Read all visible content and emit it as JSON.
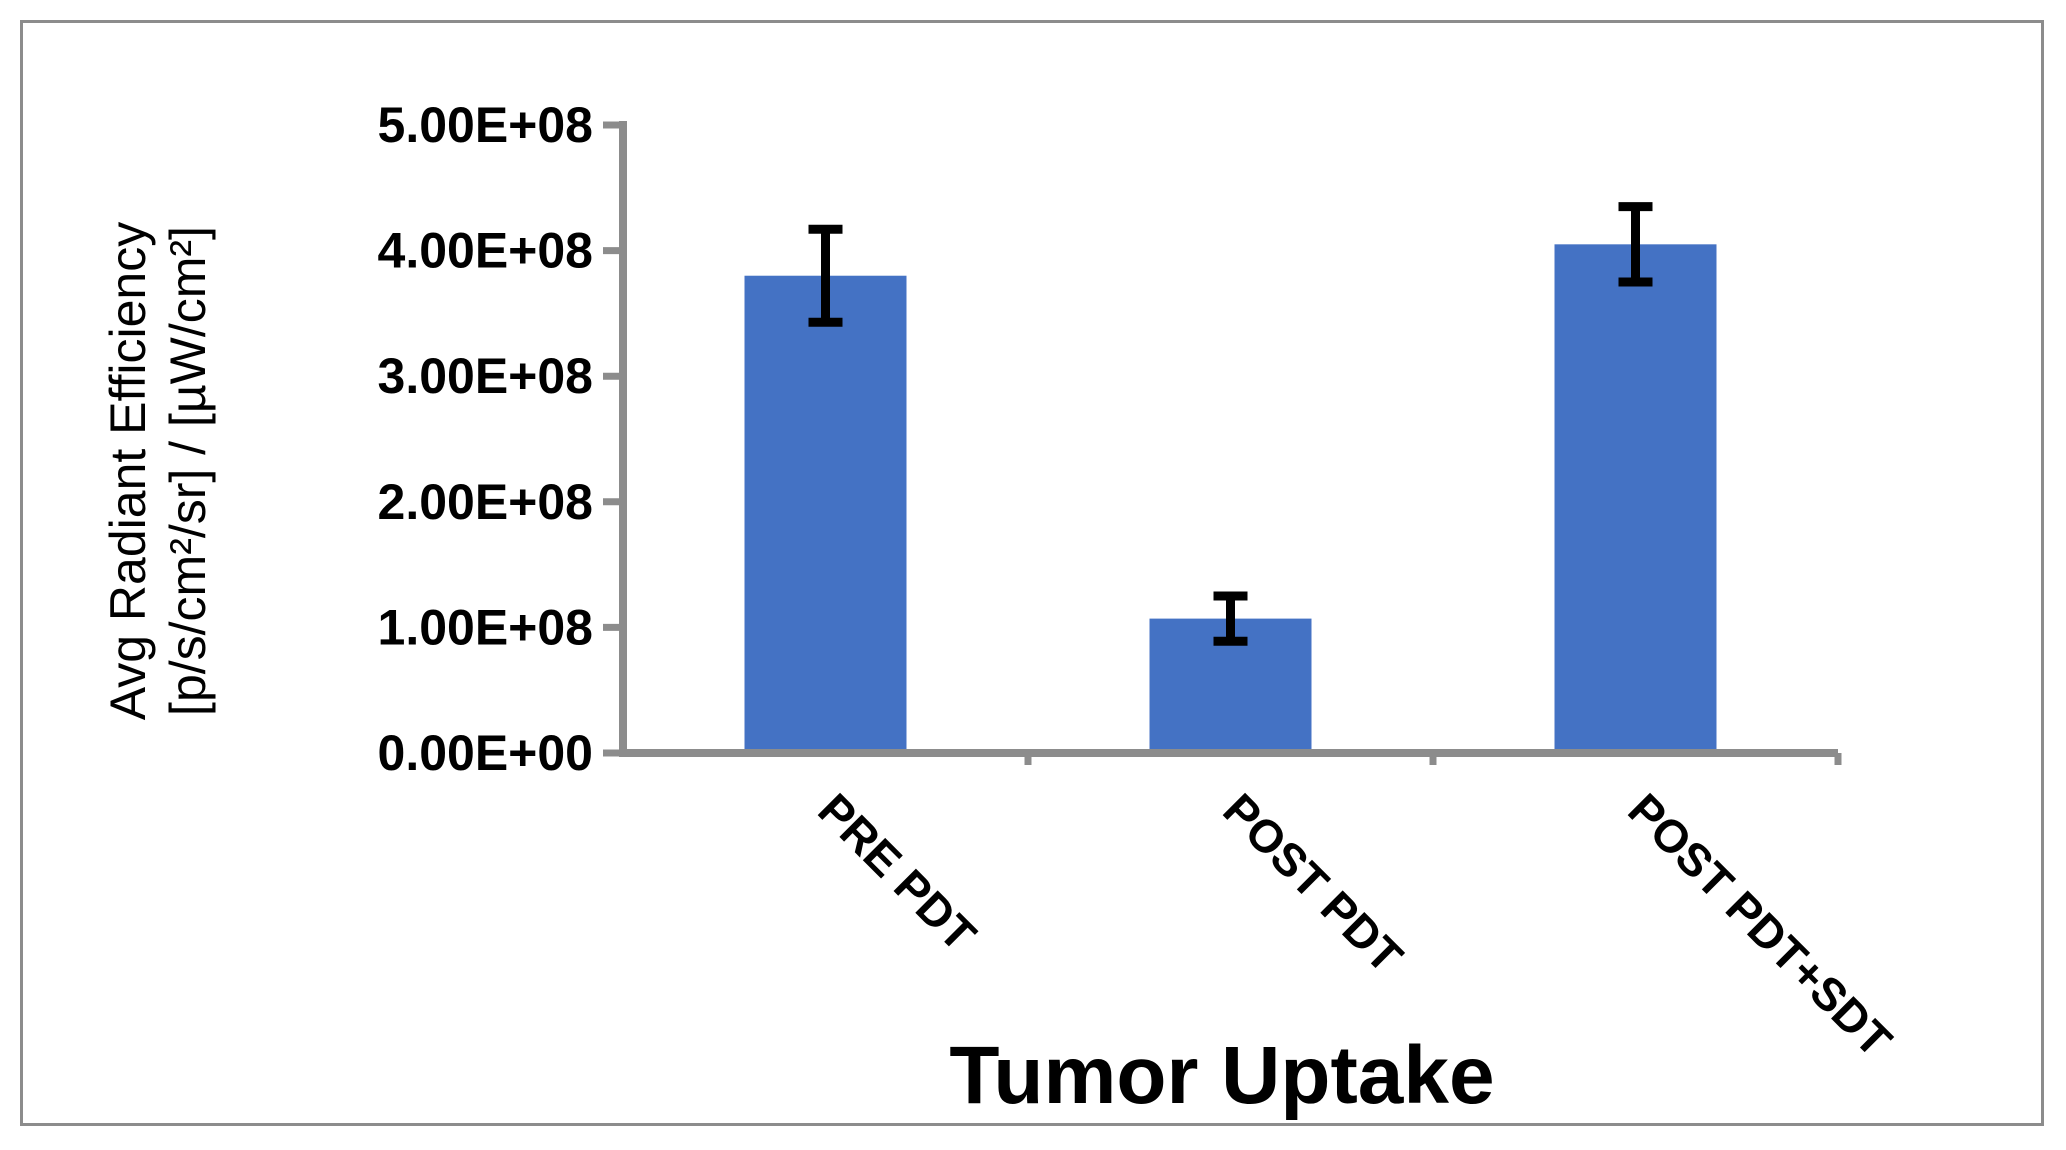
{
  "chart_data": {
    "type": "bar",
    "categories": [
      "PRE PDT",
      "POST PDT",
      "POST PDT+SDT"
    ],
    "values": [
      380000000,
      107000000,
      405000000
    ],
    "error": [
      37000000,
      18000000,
      30000000
    ],
    "ylim": [
      0,
      500000000
    ],
    "yticks": [
      0,
      100000000,
      200000000,
      300000000,
      400000000,
      500000000
    ],
    "ytick_labels": [
      "0.00E+00",
      "1.00E+08",
      "2.00E+08",
      "3.00E+08",
      "4.00E+08",
      "5.00E+08"
    ],
    "xlabel": "Tumor Uptake",
    "ylabel_lines": [
      "Avg Radiant Efficiency",
      "[p/s/cm²/sr] / [µW/cm²]"
    ],
    "grid": false,
    "legend": "none",
    "bar_color": "#4472C4",
    "axis_color": "#8C8C8C",
    "error_bar_color": "#000000"
  }
}
